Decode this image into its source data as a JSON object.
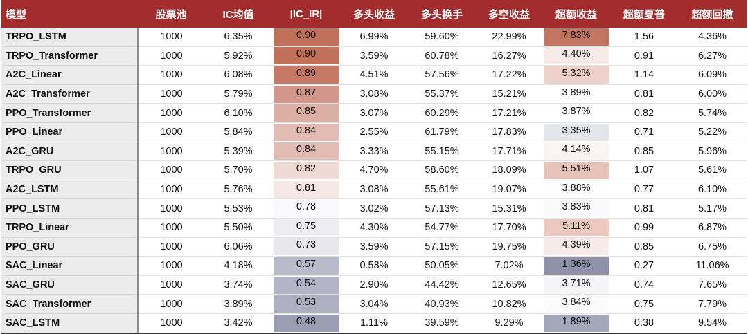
{
  "headers": [
    "模型",
    "股票池",
    "IC均值",
    "|IC_IR|",
    "多头收益",
    "多头换手",
    "多空收益",
    "超额收益",
    "超额夏普",
    "超额回撤"
  ],
  "rows": [
    {
      "model": "TRPO_LSTM",
      "pool": "1000",
      "ic_mean": "6.35%",
      "ic_ir": "0.90",
      "long_ret": "6.99%",
      "long_turnover": "59.60%",
      "ls_ret": "22.99%",
      "excess_ret": "7.83%",
      "excess_sharpe": "1.56",
      "excess_dd": "4.36%",
      "ic_ir_color": "#c1705a",
      "excess_color": "#c27560"
    },
    {
      "model": "TRPO_Transformer",
      "pool": "1000",
      "ic_mean": "5.92%",
      "ic_ir": "0.90",
      "long_ret": "3.59%",
      "long_turnover": "60.78%",
      "ls_ret": "16.27%",
      "excess_ret": "4.40%",
      "excess_sharpe": "0.91",
      "excess_dd": "6.27%",
      "ic_ir_color": "#c1705a",
      "excess_color": "#f7eae7"
    },
    {
      "model": "A2C_Linear",
      "pool": "1000",
      "ic_mean": "6.08%",
      "ic_ir": "0.89",
      "long_ret": "4.51%",
      "long_turnover": "57.56%",
      "ls_ret": "17.22%",
      "excess_ret": "5.32%",
      "excess_sharpe": "1.14",
      "excess_dd": "6.09%",
      "ic_ir_color": "#c67a66",
      "excess_color": "#eed1c9"
    },
    {
      "model": "A2C_Transformer",
      "pool": "1000",
      "ic_mean": "5.79%",
      "ic_ir": "0.87",
      "long_ret": "3.08%",
      "long_turnover": "55.37%",
      "ls_ret": "15.21%",
      "excess_ret": "3.89%",
      "excess_sharpe": "0.81",
      "excess_dd": "6.00%",
      "ic_ir_color": "#d2968a",
      "excess_color": "#ffffff"
    },
    {
      "model": "PPO_Transformer",
      "pool": "1000",
      "ic_mean": "6.10%",
      "ic_ir": "0.85",
      "long_ret": "3.07%",
      "long_turnover": "60.29%",
      "ls_ret": "17.21%",
      "excess_ret": "3.87%",
      "excess_sharpe": "0.82",
      "excess_dd": "5.74%",
      "ic_ir_color": "#dcafa5",
      "excess_color": "#ffffff"
    },
    {
      "model": "PPO_Linear",
      "pool": "1000",
      "ic_mean": "5.84%",
      "ic_ir": "0.84",
      "long_ret": "2.55%",
      "long_turnover": "61.79%",
      "ls_ret": "17.83%",
      "excess_ret": "3.35%",
      "excess_sharpe": "0.71",
      "excess_dd": "5.22%",
      "ic_ir_color": "#e2bcb3",
      "excess_color": "#e5e6ec"
    },
    {
      "model": "A2C_GRU",
      "pool": "1000",
      "ic_mean": "5.39%",
      "ic_ir": "0.84",
      "long_ret": "3.33%",
      "long_turnover": "55.15%",
      "ls_ret": "17.71%",
      "excess_ret": "4.14%",
      "excess_sharpe": "0.85",
      "excess_dd": "5.96%",
      "ic_ir_color": "#e2bcb3",
      "excess_color": "#fbf4f2"
    },
    {
      "model": "TRPO_GRU",
      "pool": "1000",
      "ic_mean": "5.70%",
      "ic_ir": "0.82",
      "long_ret": "4.70%",
      "long_turnover": "58.60%",
      "ls_ret": "18.09%",
      "excess_ret": "5.51%",
      "excess_sharpe": "1.07",
      "excess_dd": "5.61%",
      "ic_ir_color": "#efd9d3",
      "excess_color": "#e6c2b8"
    },
    {
      "model": "A2C_LSTM",
      "pool": "1000",
      "ic_mean": "5.76%",
      "ic_ir": "0.81",
      "long_ret": "3.08%",
      "long_turnover": "55.61%",
      "ls_ret": "19.07%",
      "excess_ret": "3.88%",
      "excess_sharpe": "0.77",
      "excess_dd": "6.10%",
      "ic_ir_color": "#f6e8e4",
      "excess_color": "#ffffff"
    },
    {
      "model": "PPO_LSTM",
      "pool": "1000",
      "ic_mean": "5.53%",
      "ic_ir": "0.78",
      "long_ret": "3.02%",
      "long_turnover": "57.13%",
      "ls_ret": "15.31%",
      "excess_ret": "3.83%",
      "excess_sharpe": "0.81",
      "excess_dd": "5.17%",
      "ic_ir_color": "#f9f9fb",
      "excess_color": "#fafafb"
    },
    {
      "model": "TRPO_Linear",
      "pool": "1000",
      "ic_mean": "5.50%",
      "ic_ir": "0.75",
      "long_ret": "4.30%",
      "long_turnover": "54.77%",
      "ls_ret": "17.70%",
      "excess_ret": "5.11%",
      "excess_sharpe": "0.99",
      "excess_dd": "6.87%",
      "ic_ir_color": "#eeeef2",
      "excess_color": "#eccac0"
    },
    {
      "model": "PPO_GRU",
      "pool": "1000",
      "ic_mean": "6.06%",
      "ic_ir": "0.73",
      "long_ret": "3.59%",
      "long_turnover": "57.15%",
      "ls_ret": "19.75%",
      "excess_ret": "4.39%",
      "excess_sharpe": "0.85",
      "excess_dd": "6.75%",
      "ic_ir_color": "#e7e7ec",
      "excess_color": "#f7ebe8"
    },
    {
      "model": "SAC_Linear",
      "pool": "1000",
      "ic_mean": "4.18%",
      "ic_ir": "0.57",
      "long_ret": "0.58%",
      "long_turnover": "50.05%",
      "ls_ret": "7.02%",
      "excess_ret": "1.36%",
      "excess_sharpe": "0.27",
      "excess_dd": "11.06%",
      "ic_ir_color": "#b9bbcb",
      "excess_color": "#8e91a7"
    },
    {
      "model": "SAC_GRU",
      "pool": "1000",
      "ic_mean": "3.74%",
      "ic_ir": "0.54",
      "long_ret": "2.90%",
      "long_turnover": "44.42%",
      "ls_ret": "12.65%",
      "excess_ret": "3.71%",
      "excess_sharpe": "0.74",
      "excess_dd": "7.65%",
      "ic_ir_color": "#b3b5c6",
      "excess_color": "#f5f5f8"
    },
    {
      "model": "SAC_Transformer",
      "pool": "1000",
      "ic_mean": "3.89%",
      "ic_ir": "0.53",
      "long_ret": "3.04%",
      "long_turnover": "40.93%",
      "ls_ret": "10.82%",
      "excess_ret": "3.84%",
      "excess_sharpe": "0.75",
      "excess_dd": "7.79%",
      "ic_ir_color": "#aeb0c2",
      "excess_color": "#fbfbfc"
    },
    {
      "model": "SAC_LSTM",
      "pool": "1000",
      "ic_mean": "3.42%",
      "ic_ir": "0.48",
      "long_ret": "1.11%",
      "long_turnover": "39.59%",
      "ls_ret": "9.29%",
      "excess_ret": "1.89%",
      "excess_sharpe": "0.38",
      "excess_dd": "9.54%",
      "ic_ir_color": "#9a9db3",
      "excess_color": "#a5a8bb"
    }
  ]
}
